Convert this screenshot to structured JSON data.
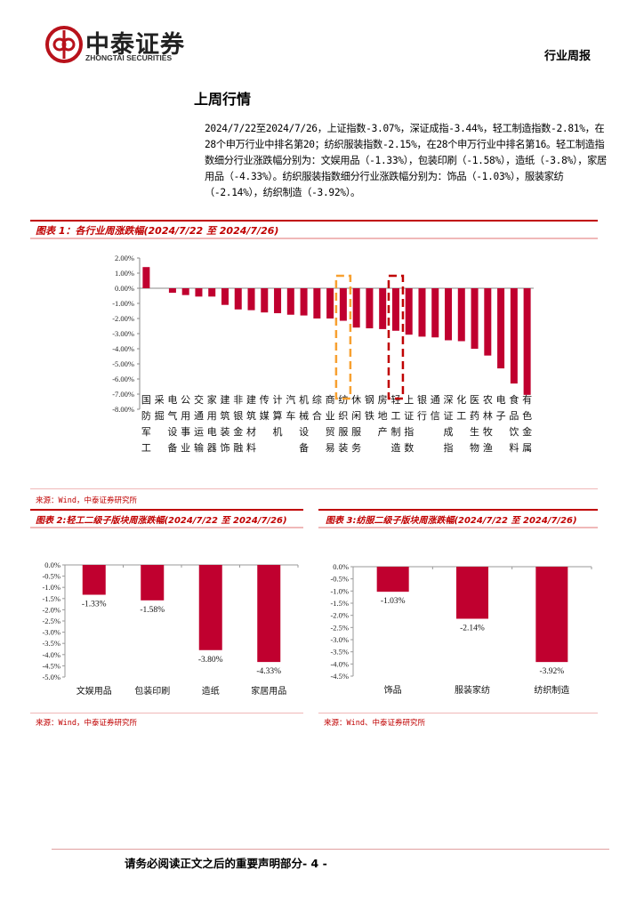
{
  "header": {
    "logo_cn": "中泰证券",
    "logo_en": "ZHONGTAI SECURITIES",
    "report_type": "行业周报"
  },
  "section_title": "上周行情",
  "summary": "2024/7/22至2024/7/26，上证指数-3.07%，深证成指-3.44%，轻工制造指数-2.81%，在28个申万行业中排名第20；纺织服装指数-2.15%，在28个申万行业中排名第16。轻工制造指数细分行业涨跌幅分别为：文娱用品（-1.33%），包装印刷（-1.58%），造纸（-3.8%），家居用品（-4.33%）。纺织服装指数细分行业涨跌幅分别为：饰品（-1.03%），服装家纺（-2.14%），纺织制造（-3.92%）。",
  "colors": {
    "bar": "#C0002F",
    "highlight_textile": "#F7A030",
    "highlight_light": "#C00000"
  },
  "chart_data": [
    {
      "type": "bar",
      "title": "图表 1：各行业周涨跌幅(2024/7/22 至 2024/7/26)",
      "categories": [
        "国防军工",
        "采掘",
        "电气设备",
        "公用事业",
        "交通运输",
        "家用电器",
        "建筑装饰",
        "非银金融",
        "建筑材料",
        "传媒",
        "计算机",
        "汽车",
        "机械设备",
        "综合",
        "商业贸易",
        "纺织服装",
        "休闲服务",
        "钢铁",
        "房地产",
        "轻工制造",
        "上证指数",
        "银行",
        "通信",
        "深证成指",
        "化工",
        "医药生物",
        "农林牧渔",
        "电子",
        "食品饮料",
        "有色金属"
      ],
      "values": [
        1.4,
        0.0,
        -0.3,
        -0.45,
        -0.55,
        -0.55,
        -1.1,
        -1.4,
        -1.45,
        -1.6,
        -1.65,
        -1.75,
        -1.8,
        -2.0,
        -2.0,
        -2.15,
        -2.6,
        -2.65,
        -2.7,
        -2.81,
        -3.07,
        -3.2,
        -3.25,
        -3.44,
        -3.5,
        -4.0,
        -4.45,
        -5.3,
        -6.3,
        -7.05
      ],
      "unit": "%",
      "ylim": [
        -8,
        2
      ],
      "yticks": [
        "2.00%",
        "1.00%",
        "0.00%",
        "-1.00%",
        "-2.00%",
        "-3.00%",
        "-4.00%",
        "-5.00%",
        "-6.00%",
        "-7.00%",
        "-8.00%"
      ],
      "highlighted": [
        "纺织服装",
        "轻工制造"
      ],
      "source": "来源：Wind，中泰证券研究所"
    },
    {
      "type": "bar",
      "title": "图表 2:轻工二级子版块周涨跌幅(2024/7/22 至 2024/7/26)",
      "categories": [
        "文娱用品",
        "包装印刷",
        "造纸",
        "家居用品"
      ],
      "values": [
        -1.33,
        -1.58,
        -3.8,
        -4.33
      ],
      "data_labels": [
        "-1.33%",
        "-1.58%",
        "-3.80%",
        "-4.33%"
      ],
      "ylim": [
        -5,
        0
      ],
      "yticks": [
        "0.0%",
        "-0.5%",
        "-1.0%",
        "-1.5%",
        "-2.0%",
        "-2.5%",
        "-3.0%",
        "-3.5%",
        "-4.0%",
        "-4.5%",
        "-5.0%"
      ],
      "source": "来源：Wind，中泰证券研究所"
    },
    {
      "type": "bar",
      "title": "图表 3:纺服二级子版块周涨跌幅(2024/7/22 至 2024/7/26)",
      "categories": [
        "饰品",
        "服装家纺",
        "纺织制造"
      ],
      "values": [
        -1.03,
        -2.14,
        -3.92
      ],
      "data_labels": [
        "-1.03%",
        "-2.14%",
        "-3.92%"
      ],
      "ylim": [
        -4.5,
        0
      ],
      "yticks": [
        "0.0%",
        "-0.5%",
        "-1.0%",
        "-1.5%",
        "-2.0%",
        "-2.5%",
        "-3.0%",
        "-3.5%",
        "-4.0%",
        "-4.5%"
      ],
      "source": "来源：Wind、中泰证券研究所"
    }
  ],
  "footer": "请务必阅读正文之后的重要声明部分- 4 -"
}
